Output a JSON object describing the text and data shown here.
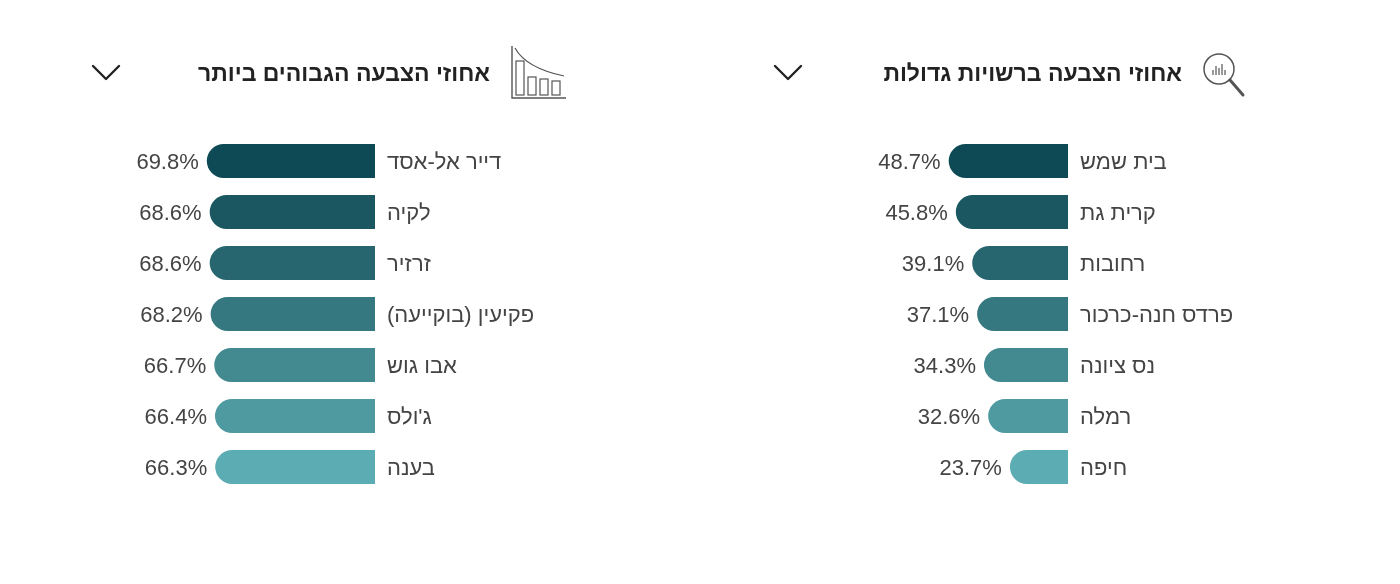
{
  "chart_data": [
    {
      "type": "bar",
      "orientation": "horizontal",
      "title": "אחוזי הצבעה ברשויות גדולות",
      "categories": [
        "בית שמש",
        "קרית גת",
        "רחובות",
        "פרדס חנה-כרכור",
        "נס ציונה",
        "רמלה",
        "חיפה"
      ],
      "values": [
        48.7,
        45.8,
        39.1,
        37.1,
        34.3,
        32.6,
        23.7
      ],
      "value_labels": [
        "48.7%",
        "45.8%",
        "39.1%",
        "37.1%",
        "34.3%",
        "32.6%",
        "23.7%"
      ],
      "colors": [
        "#0e4a55",
        "#1a5761",
        "#27666f",
        "#357880",
        "#428990",
        "#4f9aa1",
        "#5cacb3"
      ]
    },
    {
      "type": "bar",
      "orientation": "horizontal",
      "title": "אחוזי הצבעה הגבוהים ביותר",
      "categories": [
        "דייר אל-אסד",
        "לקיה",
        "זרזיר",
        "פקיעין (בוקייעה)",
        "אבו גוש",
        "ג'ולס",
        "בענה"
      ],
      "values": [
        69.8,
        68.6,
        68.6,
        68.2,
        66.7,
        66.4,
        66.3
      ],
      "value_labels": [
        "69.8%",
        "68.6%",
        "68.6%",
        "68.2%",
        "66.7%",
        "66.4%",
        "66.3%"
      ],
      "colors": [
        "#0e4a55",
        "#1a5761",
        "#27666f",
        "#357880",
        "#428990",
        "#4f9aa1",
        "#5cacb3"
      ]
    }
  ]
}
